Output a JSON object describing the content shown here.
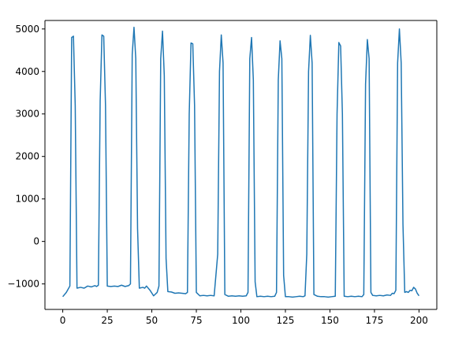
{
  "chart_data": {
    "type": "line",
    "title": "",
    "xlabel": "",
    "ylabel": "",
    "xlim": [
      -10,
      210
    ],
    "ylim": [
      -1600,
      5200
    ],
    "xticks": [
      0,
      25,
      50,
      75,
      100,
      125,
      150,
      175,
      200
    ],
    "yticks": [
      -1000,
      0,
      1000,
      2000,
      3000,
      4000,
      5000
    ],
    "grid": false,
    "legend": "none",
    "series": [
      {
        "color": "#1f77b4",
        "points": [
          [
            0,
            -1300
          ],
          [
            2,
            -1200
          ],
          [
            4,
            -1050
          ],
          [
            5,
            4800
          ],
          [
            6,
            4830
          ],
          [
            7,
            3200
          ],
          [
            8,
            -1100
          ],
          [
            10,
            -1080
          ],
          [
            12,
            -1100
          ],
          [
            14,
            -1050
          ],
          [
            16,
            -1070
          ],
          [
            18,
            -1040
          ],
          [
            19,
            -1060
          ],
          [
            20,
            -1030
          ],
          [
            21,
            3300
          ],
          [
            22,
            4860
          ],
          [
            23,
            4830
          ],
          [
            24,
            3200
          ],
          [
            25,
            -1050
          ],
          [
            27,
            -1060
          ],
          [
            29,
            -1050
          ],
          [
            31,
            -1060
          ],
          [
            33,
            -1030
          ],
          [
            35,
            -1060
          ],
          [
            37,
            -1040
          ],
          [
            38,
            -1000
          ],
          [
            39,
            4400
          ],
          [
            40,
            5040
          ],
          [
            41,
            4300
          ],
          [
            42,
            300
          ],
          [
            43,
            -1100
          ],
          [
            45,
            -1080
          ],
          [
            46,
            -1100
          ],
          [
            47,
            -1050
          ],
          [
            49,
            -1150
          ],
          [
            51,
            -1280
          ],
          [
            53,
            -1200
          ],
          [
            54,
            -1050
          ],
          [
            55,
            4300
          ],
          [
            56,
            4950
          ],
          [
            57,
            3900
          ],
          [
            58,
            -400
          ],
          [
            59,
            -1180
          ],
          [
            61,
            -1190
          ],
          [
            63,
            -1220
          ],
          [
            65,
            -1210
          ],
          [
            67,
            -1220
          ],
          [
            69,
            -1230
          ],
          [
            70,
            -1200
          ],
          [
            71,
            3000
          ],
          [
            72,
            4670
          ],
          [
            73,
            4650
          ],
          [
            74,
            3200
          ],
          [
            75,
            -1200
          ],
          [
            77,
            -1280
          ],
          [
            79,
            -1270
          ],
          [
            81,
            -1280
          ],
          [
            83,
            -1270
          ],
          [
            85,
            -1280
          ],
          [
            87,
            -300
          ],
          [
            88,
            4000
          ],
          [
            89,
            4860
          ],
          [
            90,
            4200
          ],
          [
            91,
            -1250
          ],
          [
            93,
            -1290
          ],
          [
            95,
            -1280
          ],
          [
            97,
            -1290
          ],
          [
            99,
            -1280
          ],
          [
            101,
            -1290
          ],
          [
            103,
            -1280
          ],
          [
            104,
            -1200
          ],
          [
            105,
            4300
          ],
          [
            106,
            4800
          ],
          [
            107,
            3800
          ],
          [
            108,
            -950
          ],
          [
            109,
            -1300
          ],
          [
            111,
            -1290
          ],
          [
            113,
            -1300
          ],
          [
            115,
            -1290
          ],
          [
            117,
            -1300
          ],
          [
            119,
            -1290
          ],
          [
            120,
            -1200
          ],
          [
            121,
            3800
          ],
          [
            122,
            4720
          ],
          [
            123,
            4300
          ],
          [
            124,
            -800
          ],
          [
            125,
            -1300
          ],
          [
            127,
            -1300
          ],
          [
            129,
            -1310
          ],
          [
            131,
            -1300
          ],
          [
            133,
            -1290
          ],
          [
            135,
            -1300
          ],
          [
            136,
            -1280
          ],
          [
            137,
            -300
          ],
          [
            138,
            4000
          ],
          [
            139,
            4850
          ],
          [
            140,
            4200
          ],
          [
            141,
            -1250
          ],
          [
            143,
            -1290
          ],
          [
            145,
            -1300
          ],
          [
            147,
            -1300
          ],
          [
            149,
            -1310
          ],
          [
            151,
            -1300
          ],
          [
            153,
            -1290
          ],
          [
            154,
            3000
          ],
          [
            155,
            4680
          ],
          [
            156,
            4600
          ],
          [
            157,
            3000
          ],
          [
            158,
            -1290
          ],
          [
            160,
            -1300
          ],
          [
            162,
            -1290
          ],
          [
            164,
            -1300
          ],
          [
            166,
            -1290
          ],
          [
            168,
            -1300
          ],
          [
            169,
            -1250
          ],
          [
            170,
            3700
          ],
          [
            171,
            4750
          ],
          [
            172,
            4300
          ],
          [
            173,
            -1200
          ],
          [
            174,
            -1270
          ],
          [
            176,
            -1280
          ],
          [
            178,
            -1270
          ],
          [
            180,
            -1280
          ],
          [
            182,
            -1260
          ],
          [
            184,
            -1270
          ],
          [
            185,
            -1220
          ],
          [
            186,
            -1230
          ],
          [
            187,
            -1150
          ],
          [
            188,
            4200
          ],
          [
            189,
            5000
          ],
          [
            190,
            4200
          ],
          [
            191,
            400
          ],
          [
            192,
            -1200
          ],
          [
            193,
            -1180
          ],
          [
            194,
            -1200
          ],
          [
            195,
            -1150
          ],
          [
            196,
            -1160
          ],
          [
            197,
            -1080
          ],
          [
            198,
            -1120
          ],
          [
            199,
            -1220
          ],
          [
            200,
            -1280
          ]
        ]
      }
    ]
  }
}
